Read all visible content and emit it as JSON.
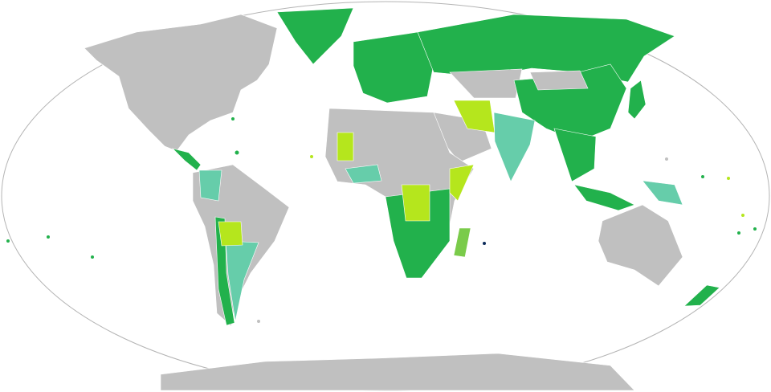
{
  "map": {
    "colors": {
      "ocean": "#ffffff",
      "border": "#b4b4b4",
      "land": "#c0c0c0",
      "green": "#22b14c",
      "teal": "#66cdaa",
      "lime": "#b5e61d",
      "mid": "#7acb4a",
      "dark": "#0b2a5a"
    }
  }
}
